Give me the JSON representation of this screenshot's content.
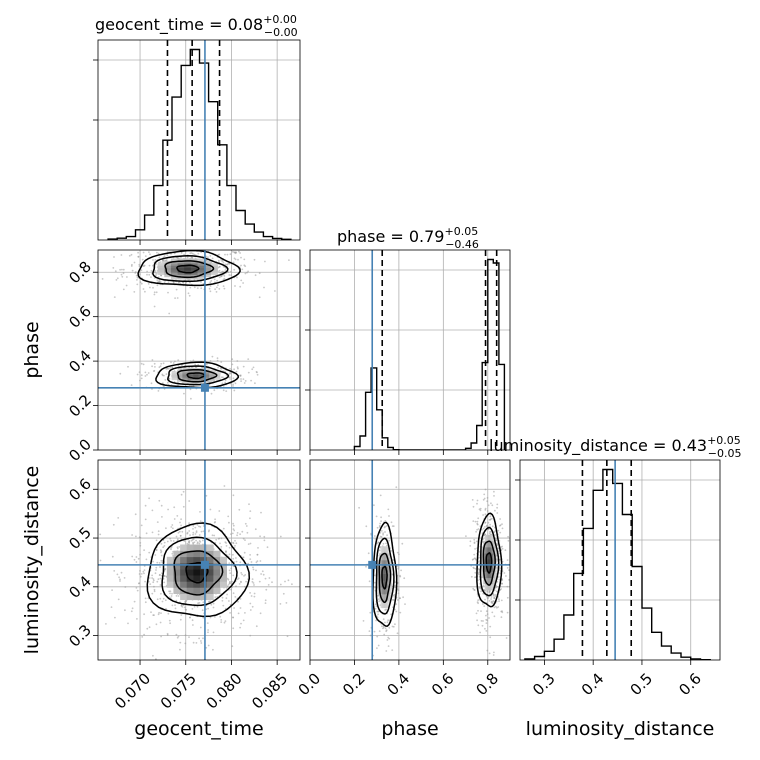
{
  "colors": {
    "truth": "#4682b4",
    "hist": "#000000",
    "grid": "#b0b0b0",
    "scatter": "#9a9a9a"
  },
  "chart_data": {
    "type": "corner",
    "parameters": [
      "geocent_time",
      "phase",
      "luminosity_distance"
    ],
    "truths": {
      "geocent_time": 0.0771,
      "phase": 0.28,
      "luminosity_distance": 0.445
    },
    "titles": {
      "geocent_time": {
        "label": "geocent_time = 0.08",
        "plus": "+0.00",
        "minus": "−0.00"
      },
      "phase": {
        "label": "phase = 0.79",
        "plus": "+0.05",
        "minus": "−0.46"
      },
      "luminosity_distance": {
        "label": "luminosity_distance = 0.43",
        "plus": "+0.05",
        "minus": "−0.05"
      }
    },
    "axis_labels": {
      "geocent_time": "geocent_time",
      "phase": "phase",
      "luminosity_distance": "luminosity_distance"
    },
    "ranges": {
      "geocent_time": [
        0.0654,
        0.0875
      ],
      "phase": [
        0.0,
        0.9
      ],
      "luminosity_distance": [
        0.25,
        0.66
      ]
    },
    "ticks": {
      "geocent_time": [
        "0.070",
        "0.075",
        "0.080",
        "0.085"
      ],
      "phase": [
        "0.0",
        "0.2",
        "0.4",
        "0.6",
        "0.8"
      ],
      "luminosity_distance": [
        "0.3",
        "0.4",
        "0.5",
        "0.6"
      ]
    },
    "histograms": {
      "geocent_time": {
        "edges": [
          0.0665,
          0.0675,
          0.0685,
          0.0695,
          0.0705,
          0.0715,
          0.0725,
          0.0735,
          0.0745,
          0.0755,
          0.0765,
          0.0775,
          0.0785,
          0.0795,
          0.0805,
          0.0815,
          0.0825,
          0.0835,
          0.0845,
          0.0855,
          0.0865
        ],
        "counts": [
          0.4,
          0.8,
          1.5,
          4.5,
          11,
          24,
          44,
          63,
          77,
          84,
          78,
          61,
          42,
          24,
          13,
          7,
          3.5,
          1.5,
          0.7,
          0.3
        ],
        "quantiles": [
          0.073,
          0.0757,
          0.0787
        ],
        "grid": true
      },
      "phase": {
        "edges": [
          0.2,
          0.225,
          0.25,
          0.275,
          0.3,
          0.325,
          0.35,
          0.375,
          0.4,
          0.425,
          0.45,
          0.475,
          0.5,
          0.525,
          0.55,
          0.575,
          0.6,
          0.625,
          0.65,
          0.675,
          0.7,
          0.725,
          0.75,
          0.775,
          0.8,
          0.825,
          0.85,
          0.875
        ],
        "counts": [
          2,
          8,
          33,
          47,
          23,
          7,
          1.5,
          0.2,
          0,
          0,
          0,
          0,
          0,
          0,
          0,
          0,
          0,
          0,
          0,
          0,
          1,
          4,
          14,
          50,
          109,
          107,
          49
        ],
        "quantiles": [
          0.325,
          0.79,
          0.84
        ],
        "grid": true
      },
      "luminosity_distance": {
        "edges": [
          0.26,
          0.28,
          0.3,
          0.32,
          0.34,
          0.36,
          0.38,
          0.4,
          0.42,
          0.44,
          0.46,
          0.48,
          0.5,
          0.52,
          0.54,
          0.56,
          0.58,
          0.6,
          0.62,
          0.64
        ],
        "counts": [
          0.3,
          1,
          2.5,
          6,
          13,
          25,
          38,
          49,
          55,
          51,
          42,
          27,
          15,
          8,
          4,
          2,
          0.8,
          0.3,
          0.1
        ],
        "quantiles": [
          0.378,
          0.428,
          0.478
        ],
        "grid": true
      }
    },
    "joint_modes": {
      "geocent_time|phase": [
        {
          "cx": 0.0752,
          "cy": 0.815,
          "sx": 0.0026,
          "sy": 0.037,
          "weight": 0.62
        },
        {
          "cx": 0.0761,
          "cy": 0.335,
          "sx": 0.0021,
          "sy": 0.027,
          "weight": 0.38
        }
      ],
      "geocent_time|luminosity_distance": [
        {
          "cx": 0.0762,
          "cy": 0.43,
          "sx": 0.0026,
          "sy": 0.045,
          "weight": 1.0
        }
      ],
      "phase|luminosity_distance": [
        {
          "cx": 0.335,
          "cy": 0.42,
          "sx": 0.025,
          "sy": 0.05,
          "weight": 0.35
        },
        {
          "cx": 0.805,
          "cy": 0.45,
          "sx": 0.026,
          "sy": 0.045,
          "weight": 0.65
        }
      ]
    }
  }
}
